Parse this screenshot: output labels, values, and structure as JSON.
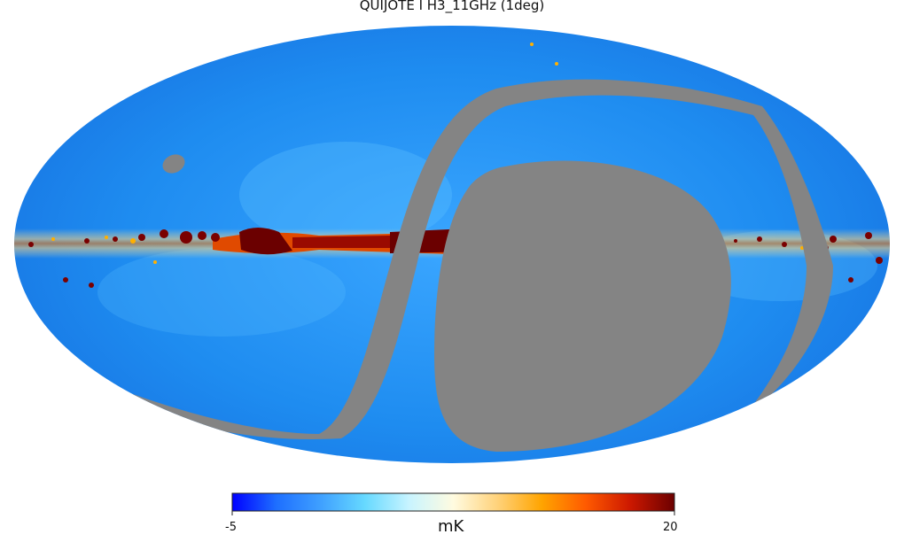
{
  "title": "QUIJOTE I H3_11GHz (1deg)",
  "colorbar": {
    "min_label": "-5",
    "max_label": "20",
    "unit": "mK",
    "range": [
      -5,
      20
    ],
    "stops": [
      "#0000ff",
      "#1e6fff",
      "#3fa0ff",
      "#66d9ff",
      "#c8f4ff",
      "#fffbe0",
      "#ffd27a",
      "#ffa400",
      "#ff5a00",
      "#cc1800",
      "#6b0000"
    ]
  },
  "colors": {
    "sky_background": "#1c8ff0",
    "mask": "#848484",
    "galactic_plane_hot": "#6b0000",
    "galactic_plane_warm": "#e04a00"
  }
}
